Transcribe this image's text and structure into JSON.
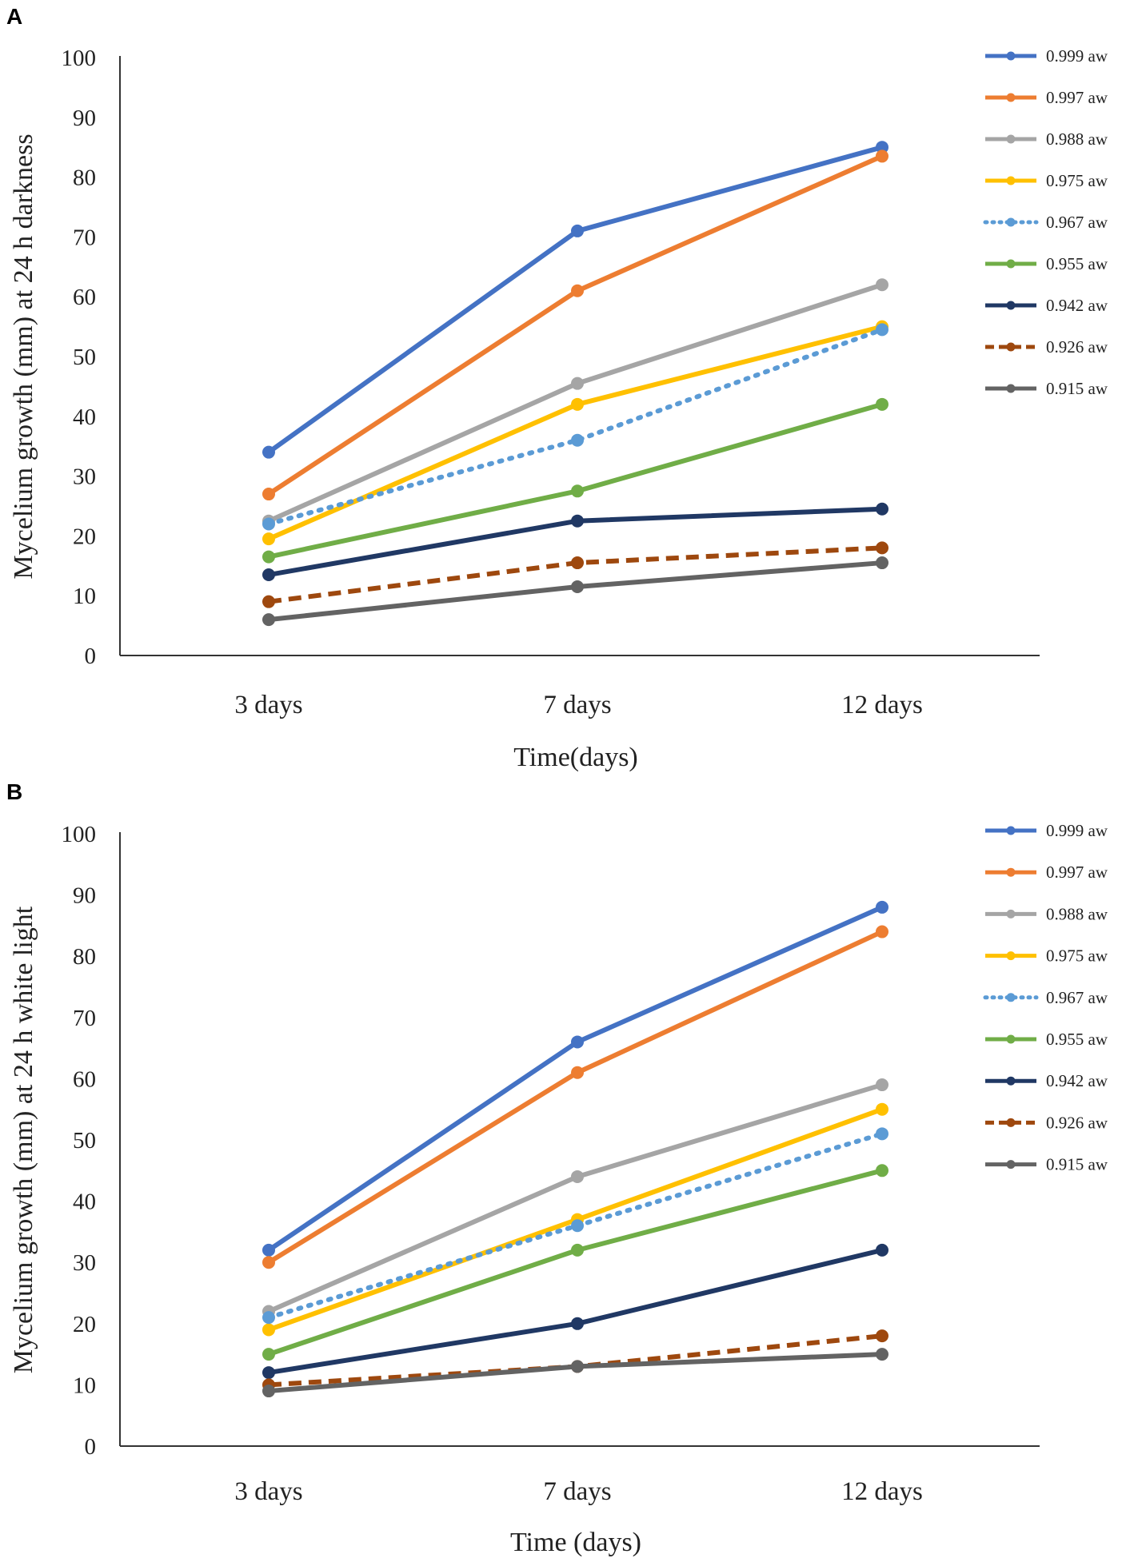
{
  "chart_data": [
    {
      "type": "line",
      "panel_label": "A",
      "categories": [
        "3 days",
        "7 days",
        "12 days"
      ],
      "xlabel": "Time(days)",
      "ylabel": "Mycelium growth (mm) at 24 h darkness",
      "ylim": [
        0,
        100
      ],
      "yticks": [
        "0",
        "10",
        "20",
        "30",
        "40",
        "50",
        "60",
        "70",
        "80",
        "90",
        "100"
      ],
      "legend_position": "right",
      "series": [
        {
          "name": "0.999 aw",
          "values": [
            34,
            71,
            85
          ],
          "color": "#4472c4",
          "dash": "solid"
        },
        {
          "name": "0.997 aw",
          "values": [
            27,
            61,
            83.5
          ],
          "color": "#ed7d31",
          "dash": "solid"
        },
        {
          "name": "0.988 aw",
          "values": [
            22.5,
            45.5,
            62
          ],
          "color": "#a5a5a5",
          "dash": "solid"
        },
        {
          "name": "0.975 aw",
          "values": [
            19.5,
            42,
            55
          ],
          "color": "#ffc000",
          "dash": "solid"
        },
        {
          "name": "0.967 aw",
          "values": [
            22,
            36,
            54.5
          ],
          "color": "#5b9bd5",
          "dash": "dotted"
        },
        {
          "name": "0.955 aw",
          "values": [
            16.5,
            27.5,
            42
          ],
          "color": "#70ad47",
          "dash": "solid"
        },
        {
          "name": "0.942 aw",
          "values": [
            13.5,
            22.5,
            24.5
          ],
          "color": "#203864",
          "dash": "solid"
        },
        {
          "name": "0.926 aw",
          "values": [
            9,
            15.5,
            18
          ],
          "color": "#9e480e",
          "dash": "dashed"
        },
        {
          "name": "0.915 aw",
          "values": [
            6,
            11.5,
            15.5
          ],
          "color": "#636363",
          "dash": "solid"
        }
      ]
    },
    {
      "type": "line",
      "panel_label": "B",
      "categories": [
        "3 days",
        "7 days",
        "12 days"
      ],
      "xlabel": "Time (days)",
      "ylabel": "Mycelium growth (mm) at 24 h white light",
      "ylim": [
        0,
        100
      ],
      "yticks": [
        "0",
        "10",
        "20",
        "30",
        "40",
        "50",
        "60",
        "70",
        "80",
        "90",
        "100"
      ],
      "legend_position": "right",
      "series": [
        {
          "name": "0.999 aw",
          "values": [
            32,
            66,
            88
          ],
          "color": "#4472c4",
          "dash": "solid"
        },
        {
          "name": "0.997 aw",
          "values": [
            30,
            61,
            84
          ],
          "color": "#ed7d31",
          "dash": "solid"
        },
        {
          "name": "0.988 aw",
          "values": [
            22,
            44,
            59
          ],
          "color": "#a5a5a5",
          "dash": "solid"
        },
        {
          "name": "0.975 aw",
          "values": [
            19,
            37,
            55
          ],
          "color": "#ffc000",
          "dash": "solid"
        },
        {
          "name": "0.967 aw",
          "values": [
            21,
            36,
            51
          ],
          "color": "#5b9bd5",
          "dash": "dotted"
        },
        {
          "name": "0.955 aw",
          "values": [
            15,
            32,
            45
          ],
          "color": "#70ad47",
          "dash": "solid"
        },
        {
          "name": "0.942 aw",
          "values": [
            12,
            20,
            32
          ],
          "color": "#203864",
          "dash": "solid"
        },
        {
          "name": "0.926 aw",
          "values": [
            10,
            13,
            18
          ],
          "color": "#9e480e",
          "dash": "dashed"
        },
        {
          "name": "0.915 aw",
          "values": [
            9,
            13,
            15
          ],
          "color": "#636363",
          "dash": "solid"
        }
      ]
    }
  ]
}
